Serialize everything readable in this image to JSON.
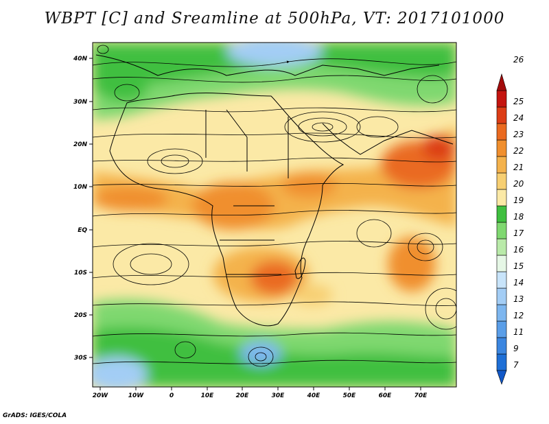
{
  "title": "WBPT [C] and Sreamline at 500hPa, VT: 2017101000",
  "credit": "GrADS: IGES/COLA",
  "map": {
    "lon_labels": [
      "20W",
      "10W",
      "0",
      "10E",
      "20E",
      "30E",
      "40E",
      "50E",
      "60E",
      "70E"
    ],
    "lat_labels": [
      "40N",
      "30N",
      "20N",
      "10N",
      "EQ",
      "10S",
      "20S",
      "30S"
    ],
    "lon_range": [
      -22,
      80
    ],
    "lat_range": [
      -36,
      45
    ]
  },
  "colorbar": {
    "labels": [
      "7",
      "9",
      "11",
      "12",
      "13",
      "14",
      "15",
      "16",
      "17",
      "18",
      "19",
      "20",
      "21",
      "22",
      "23",
      "24",
      "25",
      "26"
    ],
    "colors": [
      "#1e6fd6",
      "#3b86e0",
      "#5a9ee8",
      "#7db6ef",
      "#a3cdf5",
      "#c8e4fa",
      "#e6f7e6",
      "#b9eaa9",
      "#7fd870",
      "#3fbf3f",
      "#fbe9a6",
      "#f7cf72",
      "#f4b24c",
      "#f08f2e",
      "#ea6a20",
      "#dc3d16",
      "#c4140f"
    ],
    "end_colors": [
      "#1158c8",
      "#a30b0b"
    ]
  }
}
